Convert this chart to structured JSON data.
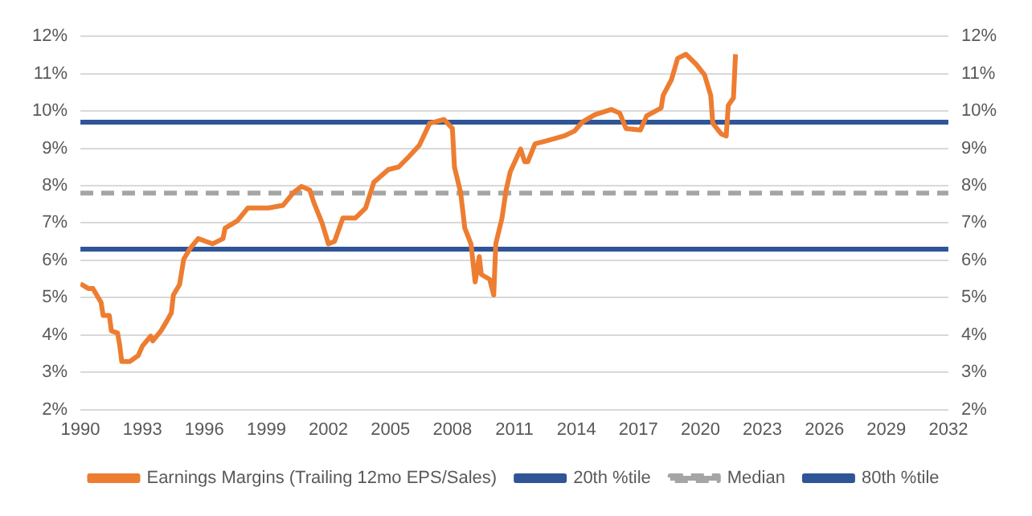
{
  "chart_data": {
    "type": "line",
    "xlim": [
      1990,
      2032
    ],
    "xticks": [
      1990,
      1993,
      1996,
      1999,
      2002,
      2005,
      2008,
      2011,
      2014,
      2017,
      2020,
      2023,
      2026,
      2029,
      2032
    ],
    "ylim": [
      2,
      12
    ],
    "yticks": [
      {
        "value": 2,
        "label": "2%"
      },
      {
        "value": 3,
        "label": "3%"
      },
      {
        "value": 4,
        "label": "4%"
      },
      {
        "value": 5,
        "label": "5%"
      },
      {
        "value": 6,
        "label": "6%"
      },
      {
        "value": 7,
        "label": "7%"
      },
      {
        "value": 8,
        "label": "8%"
      },
      {
        "value": 9,
        "label": "9%"
      },
      {
        "value": 10,
        "label": "10%"
      },
      {
        "value": 11,
        "label": "11%"
      },
      {
        "value": 12,
        "label": "12%"
      }
    ],
    "y2lim": [
      2,
      12
    ],
    "y2ticks": [
      {
        "value": 2,
        "label": "2%"
      },
      {
        "value": 3,
        "label": "3%"
      },
      {
        "value": 4,
        "label": "4%"
      },
      {
        "value": 5,
        "label": "5%"
      },
      {
        "value": 6,
        "label": "6%"
      },
      {
        "value": 7,
        "label": "7%"
      },
      {
        "value": 8,
        "label": "8%"
      },
      {
        "value": 9,
        "label": "9%"
      },
      {
        "value": 10,
        "label": "10%"
      },
      {
        "value": 11,
        "label": "11%"
      },
      {
        "value": 12,
        "label": "12%"
      }
    ],
    "grid": "y",
    "legend": "bottom",
    "marker": "none",
    "series": [
      {
        "name": "Earnings Margins (Trailing 12mo EPS/Sales)",
        "color": "#ed7d31",
        "line_style": "solid",
        "x": [
          1990.0,
          1990.4,
          1990.6,
          1991.0,
          1991.1,
          1991.4,
          1991.5,
          1991.8,
          1991.9,
          1992.0,
          1992.4,
          1992.8,
          1993.0,
          1993.4,
          1993.5,
          1993.9,
          1994.2,
          1994.4,
          1994.5,
          1994.8,
          1995.0,
          1995.3,
          1995.7,
          1996.4,
          1996.9,
          1997.0,
          1997.6,
          1998.1,
          1999.1,
          1999.8,
          2000.3,
          2000.7,
          2001.1,
          2001.3,
          2001.7,
          2002.0,
          2002.3,
          2002.7,
          2003.3,
          2003.8,
          2004.2,
          2004.9,
          2005.4,
          2005.9,
          2006.4,
          2006.9,
          2007.6,
          2008.0,
          2008.1,
          2008.4,
          2008.6,
          2008.9,
          2009.1,
          2009.3,
          2009.4,
          2009.8,
          2010.0,
          2010.1,
          2010.4,
          2010.6,
          2010.8,
          2011.3,
          2011.5,
          2011.65,
          2012.0,
          2012.5,
          2013.4,
          2013.9,
          2014.3,
          2014.9,
          2015.7,
          2016.1,
          2016.4,
          2017.1,
          2017.4,
          2018.1,
          2018.2,
          2018.6,
          2018.9,
          2019.3,
          2019.8,
          2020.2,
          2020.5,
          2020.6,
          2021.0,
          2021.25,
          2021.35,
          2021.6,
          2021.7
        ],
        "values": [
          5.37,
          5.24,
          5.25,
          4.87,
          4.52,
          4.52,
          4.11,
          4.05,
          3.73,
          3.29,
          3.29,
          3.45,
          3.7,
          3.97,
          3.84,
          4.11,
          4.39,
          4.59,
          5.07,
          5.35,
          6.03,
          6.31,
          6.58,
          6.44,
          6.58,
          6.86,
          7.06,
          7.4,
          7.4,
          7.47,
          7.81,
          7.98,
          7.88,
          7.54,
          6.99,
          6.44,
          6.51,
          7.13,
          7.13,
          7.4,
          8.09,
          8.43,
          8.5,
          8.78,
          9.08,
          9.67,
          9.77,
          9.53,
          8.5,
          7.81,
          6.86,
          6.44,
          5.42,
          6.1,
          5.62,
          5.49,
          5.07,
          6.44,
          7.13,
          7.88,
          8.37,
          8.98,
          8.64,
          8.64,
          9.12,
          9.19,
          9.33,
          9.46,
          9.71,
          9.9,
          10.04,
          9.94,
          9.53,
          9.49,
          9.87,
          10.08,
          10.42,
          10.84,
          11.41,
          11.52,
          11.25,
          10.97,
          10.42,
          9.67,
          9.39,
          9.33,
          10.15,
          10.35,
          11.52
        ]
      },
      {
        "name": "20th %tile",
        "color": "#2f5597",
        "line_style": "solid",
        "x": [
          1990,
          2032
        ],
        "values": [
          6.3,
          6.3
        ]
      },
      {
        "name": "Median",
        "color": "#a5a5a5",
        "line_style": "dashed",
        "x": [
          1990,
          2032
        ],
        "values": [
          7.8,
          7.8
        ]
      },
      {
        "name": "80th %tile",
        "color": "#2f5597",
        "line_style": "solid",
        "x": [
          1990,
          2032
        ],
        "values": [
          9.7,
          9.7
        ]
      }
    ]
  }
}
